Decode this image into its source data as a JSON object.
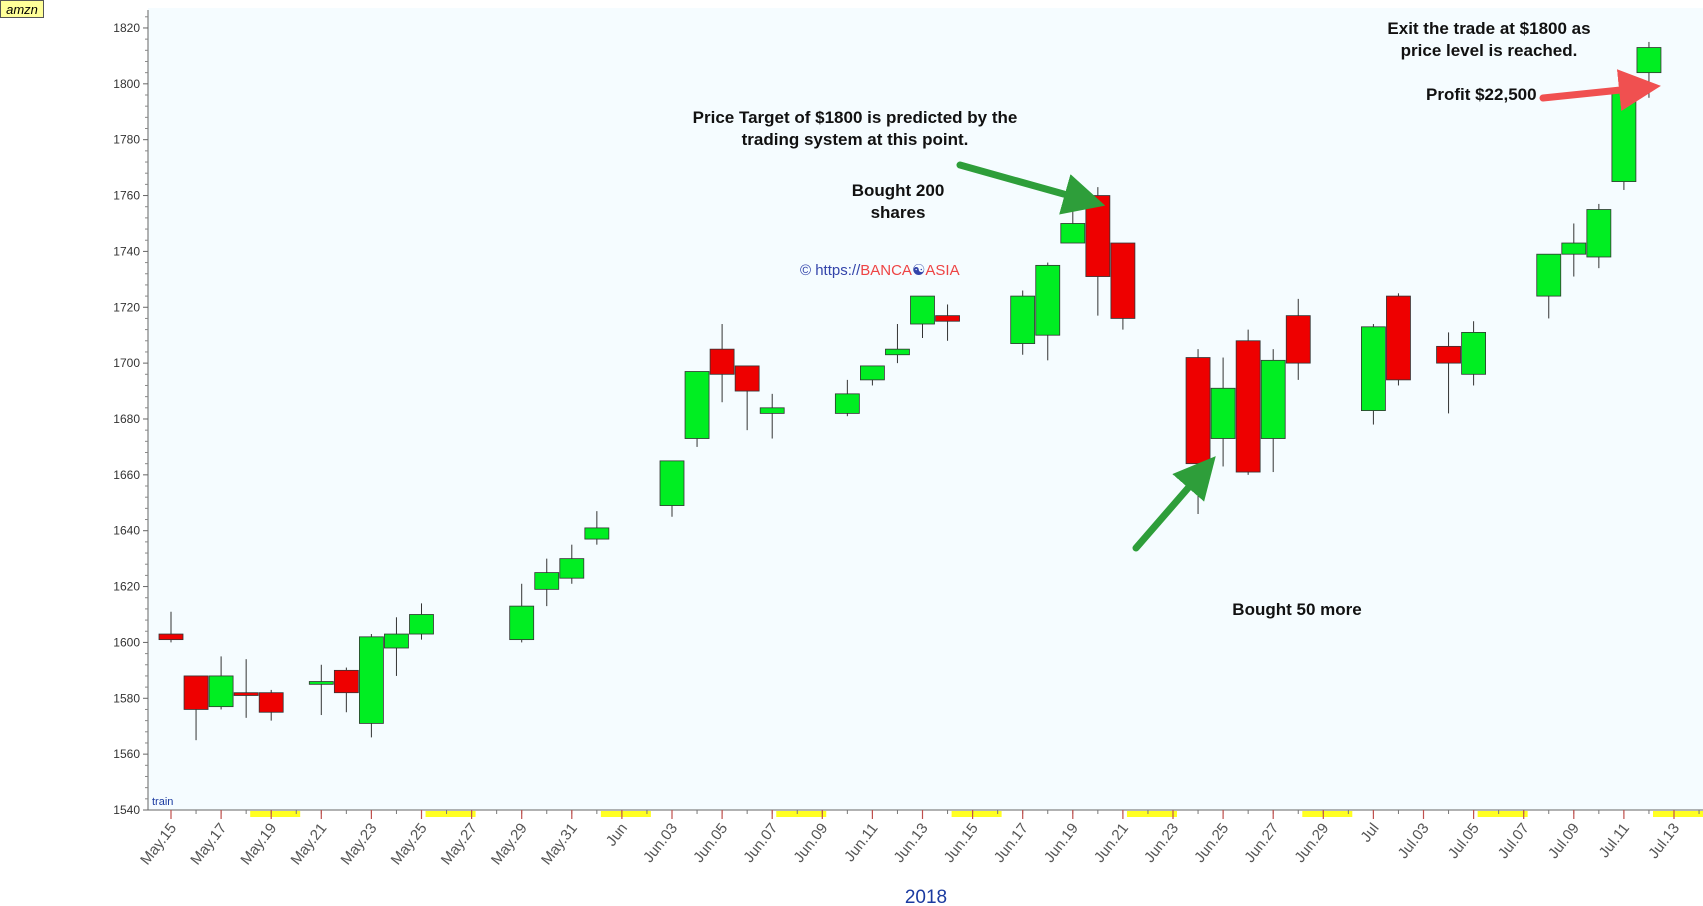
{
  "ticker": "amzn",
  "watermark": {
    "prefix": "© https://",
    "brand_a": "BANCA",
    "symbol": "☯",
    "brand_b": "ASIA"
  },
  "train_label": "train",
  "year_label": "2018",
  "annotations": {
    "target_line1": "Price Target of $1800 is predicted by the",
    "target_line2": "trading system at this point.",
    "bought200_line1": "Bought 200",
    "bought200_line2": "shares",
    "bought50": "Bought 50 more",
    "exit_line1": "Exit the trade at $1800 as",
    "exit_line2": "price level is reached.",
    "profit": "Profit $22,500"
  },
  "colors": {
    "up": "#00ee22",
    "down": "#ee0000",
    "background": "#f5fcff",
    "weekend": "#ffff22",
    "arrow_green": "#2e9e3a",
    "arrow_red": "#f05050"
  },
  "chart_data": {
    "type": "candlestick",
    "ylim": [
      1540,
      1825
    ],
    "yticks": [
      1540,
      1560,
      1580,
      1600,
      1620,
      1640,
      1660,
      1680,
      1700,
      1720,
      1740,
      1760,
      1780,
      1800,
      1820
    ],
    "x_tick_labels": [
      "May.15",
      "May.17",
      "May.19",
      "May.21",
      "May.23",
      "May.25",
      "May.27",
      "May.29",
      "May.31",
      "Jun",
      "Jun.03",
      "Jun.05",
      "Jun.07",
      "Jun.09",
      "Jun.11",
      "Jun.13",
      "Jun.15",
      "Jun.17",
      "Jun.19",
      "Jun.21",
      "Jun.23",
      "Jun.25",
      "Jun.27",
      "Jun.29",
      "Jul",
      "Jul.03",
      "Jul.05",
      "Jul.07",
      "Jul.09",
      "Jul.11",
      "Jul.13"
    ],
    "candles": [
      {
        "date": "May.15",
        "open": 1603,
        "high": 1611,
        "low": 1600,
        "close": 1601
      },
      {
        "date": "May.16",
        "open": 1588,
        "high": 1588,
        "low": 1565,
        "close": 1576
      },
      {
        "date": "May.17",
        "open": 1577,
        "high": 1595,
        "low": 1576,
        "close": 1588
      },
      {
        "date": "May.18",
        "open": 1582,
        "high": 1594,
        "low": 1573,
        "close": 1581
      },
      {
        "date": "May.19",
        "open": 1582,
        "high": 1583,
        "low": 1572,
        "close": 1575
      },
      {
        "date": "May.21",
        "open": 1585,
        "high": 1592,
        "low": 1574,
        "close": 1586
      },
      {
        "date": "May.22",
        "open": 1590,
        "high": 1591,
        "low": 1575,
        "close": 1582
      },
      {
        "date": "May.23",
        "open": 1571,
        "high": 1603,
        "low": 1566,
        "close": 1602
      },
      {
        "date": "May.24",
        "open": 1598,
        "high": 1609,
        "low": 1588,
        "close": 1603
      },
      {
        "date": "May.25",
        "open": 1603,
        "high": 1614,
        "low": 1601,
        "close": 1610
      },
      {
        "date": "May.29",
        "open": 1601,
        "high": 1621,
        "low": 1600,
        "close": 1613
      },
      {
        "date": "May.30",
        "open": 1619,
        "high": 1630,
        "low": 1613,
        "close": 1625
      },
      {
        "date": "May.31",
        "open": 1623,
        "high": 1635,
        "low": 1621,
        "close": 1630
      },
      {
        "date": "Jun.01",
        "open": 1637,
        "high": 1647,
        "low": 1635,
        "close": 1641
      },
      {
        "date": "Jun.04",
        "open": 1649,
        "high": 1665,
        "low": 1645,
        "close": 1665
      },
      {
        "date": "Jun.05",
        "open": 1673,
        "high": 1697,
        "low": 1670,
        "close": 1697
      },
      {
        "date": "Jun.06",
        "open": 1705,
        "high": 1714,
        "low": 1686,
        "close": 1696
      },
      {
        "date": "Jun.07",
        "open": 1699,
        "high": 1699,
        "low": 1676,
        "close": 1690
      },
      {
        "date": "Jun.08",
        "open": 1682,
        "high": 1689,
        "low": 1673,
        "close": 1684
      },
      {
        "date": "Jun.11",
        "open": 1682,
        "high": 1694,
        "low": 1681,
        "close": 1689
      },
      {
        "date": "Jun.12",
        "open": 1694,
        "high": 1699,
        "low": 1692,
        "close": 1699
      },
      {
        "date": "Jun.13",
        "open": 1703,
        "high": 1714,
        "low": 1700,
        "close": 1705
      },
      {
        "date": "Jun.14",
        "open": 1714,
        "high": 1724,
        "low": 1709,
        "close": 1724
      },
      {
        "date": "Jun.15",
        "open": 1717,
        "high": 1721,
        "low": 1708,
        "close": 1715
      },
      {
        "date": "Jun.18",
        "open": 1707,
        "high": 1726,
        "low": 1703,
        "close": 1724
      },
      {
        "date": "Jun.19",
        "open": 1710,
        "high": 1736,
        "low": 1701,
        "close": 1735
      },
      {
        "date": "Jun.20",
        "open": 1743,
        "high": 1763,
        "low": 1743,
        "close": 1750
      },
      {
        "date": "Jun.21",
        "open": 1760,
        "high": 1763,
        "low": 1717,
        "close": 1731
      },
      {
        "date": "Jun.22",
        "open": 1743,
        "high": 1743,
        "low": 1712,
        "close": 1716
      },
      {
        "date": "Jun.25",
        "open": 1702,
        "high": 1705,
        "low": 1646,
        "close": 1664
      },
      {
        "date": "Jun.26",
        "open": 1673,
        "high": 1702,
        "low": 1663,
        "close": 1691
      },
      {
        "date": "Jun.27",
        "open": 1708,
        "high": 1712,
        "low": 1660,
        "close": 1661
      },
      {
        "date": "Jun.28",
        "open": 1673,
        "high": 1705,
        "low": 1661,
        "close": 1701
      },
      {
        "date": "Jun.29",
        "open": 1717,
        "high": 1723,
        "low": 1694,
        "close": 1700
      },
      {
        "date": "Jul.02",
        "open": 1683,
        "high": 1714,
        "low": 1678,
        "close": 1713
      },
      {
        "date": "Jul.03",
        "open": 1724,
        "high": 1725,
        "low": 1692,
        "close": 1694
      },
      {
        "date": "Jul.05",
        "open": 1706,
        "high": 1711,
        "low": 1682,
        "close": 1700
      },
      {
        "date": "Jul.06",
        "open": 1696,
        "high": 1715,
        "low": 1692,
        "close": 1711
      },
      {
        "date": "Jul.09",
        "open": 1724,
        "high": 1739,
        "low": 1716,
        "close": 1739
      },
      {
        "date": "Jul.10",
        "open": 1739,
        "high": 1750,
        "low": 1731,
        "close": 1743
      },
      {
        "date": "Jul.11",
        "open": 1738,
        "high": 1757,
        "low": 1734,
        "close": 1755
      },
      {
        "date": "Jul.12",
        "open": 1765,
        "high": 1798,
        "low": 1762,
        "close": 1797
      },
      {
        "date": "Jul.13",
        "open": 1804,
        "high": 1815,
        "low": 1795,
        "close": 1813
      }
    ]
  }
}
